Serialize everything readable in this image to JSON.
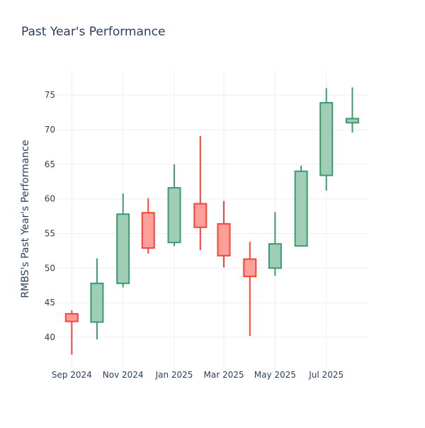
{
  "chart_data": {
    "type": "candlestick",
    "title": "Past Year's Performance",
    "xlabel": "",
    "ylabel": "RMBS's Past Year's Performance",
    "ylim": [
      35.5,
      78.5
    ],
    "yticks": [
      40,
      45,
      50,
      55,
      60,
      65,
      70,
      75
    ],
    "xlim": [
      "2024-08-14",
      "2025-08-20"
    ],
    "xticks": [
      {
        "date": "2024-09-01",
        "label": "Sep 2024"
      },
      {
        "date": "2024-11-01",
        "label": "Nov 2024"
      },
      {
        "date": "2025-01-01",
        "label": "Jan 2025"
      },
      {
        "date": "2025-03-01",
        "label": "Mar 2025"
      },
      {
        "date": "2025-05-01",
        "label": "May 2025"
      },
      {
        "date": "2025-07-01",
        "label": "Jul 2025"
      }
    ],
    "grid": true,
    "colors": {
      "increasing_line": "#3d9970",
      "increasing_fill": "#9fcdb6",
      "decreasing_line": "#ff4136",
      "decreasing_fill": "#ff9f9a",
      "grid": "#eeeeee",
      "text": "#2a3f5f"
    },
    "candles": [
      {
        "date": "2024-09-01",
        "open": 43.4,
        "high": 43.9,
        "low": 37.5,
        "close": 42.3
      },
      {
        "date": "2024-10-01",
        "open": 42.2,
        "high": 51.4,
        "low": 39.7,
        "close": 47.8
      },
      {
        "date": "2024-11-01",
        "open": 47.8,
        "high": 60.8,
        "low": 47.2,
        "close": 57.8
      },
      {
        "date": "2024-12-01",
        "open": 58.0,
        "high": 60.1,
        "low": 52.1,
        "close": 52.9
      },
      {
        "date": "2025-01-01",
        "open": 53.7,
        "high": 65.0,
        "low": 53.2,
        "close": 61.6
      },
      {
        "date": "2025-02-01",
        "open": 59.3,
        "high": 69.1,
        "low": 52.6,
        "close": 55.9
      },
      {
        "date": "2025-03-01",
        "open": 56.4,
        "high": 59.7,
        "low": 50.1,
        "close": 51.8
      },
      {
        "date": "2025-04-01",
        "open": 51.3,
        "high": 53.8,
        "low": 40.2,
        "close": 48.8
      },
      {
        "date": "2025-05-01",
        "open": 50.0,
        "high": 58.1,
        "low": 48.9,
        "close": 53.5
      },
      {
        "date": "2025-06-01",
        "open": 53.2,
        "high": 64.8,
        "low": 53.2,
        "close": 64.0
      },
      {
        "date": "2025-07-01",
        "open": 63.4,
        "high": 76.0,
        "low": 61.2,
        "close": 73.9
      },
      {
        "date": "2025-08-01",
        "open": 71.0,
        "high": 76.1,
        "low": 69.6,
        "close": 71.6
      }
    ]
  }
}
